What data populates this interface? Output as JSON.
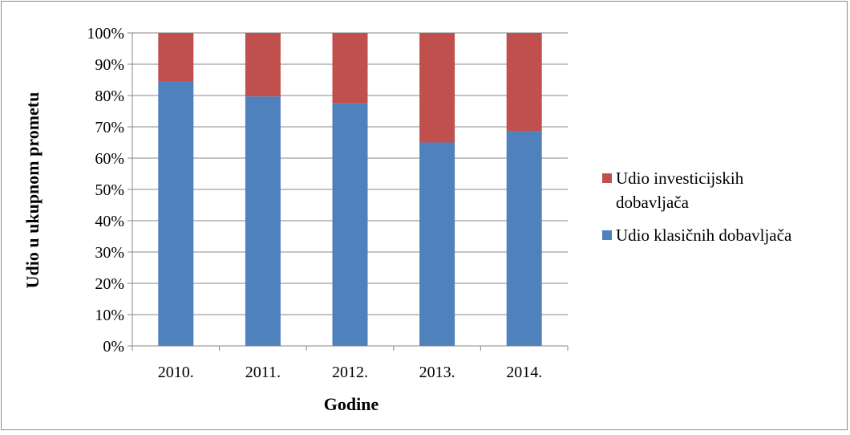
{
  "chart_data": {
    "type": "bar",
    "stacked": true,
    "percent": true,
    "categories": [
      "2010.",
      "2011.",
      "2012.",
      "2013.",
      "2014."
    ],
    "series": [
      {
        "name": "Udio klasičnih dobavljača",
        "values": [
          84.5,
          79.7,
          77.5,
          65.0,
          68.7
        ],
        "color": "#4f81bd"
      },
      {
        "name": "Udio investicijskih dobavljača",
        "values": [
          15.5,
          20.3,
          22.5,
          35.0,
          31.3
        ],
        "color": "#c0504d"
      }
    ],
    "ylim": [
      0,
      100
    ],
    "yticks": [
      "0%",
      "10%",
      "20%",
      "30%",
      "40%",
      "50%",
      "60%",
      "70%",
      "80%",
      "90%",
      "100%"
    ],
    "xlabel": "Godine",
    "ylabel": "Udio u ukupnom prometu",
    "grid": true,
    "legend_position": "right",
    "legend": [
      {
        "lines": [
          "Udio investicijskih",
          "dobavljača"
        ],
        "color": "#c0504d"
      },
      {
        "lines": [
          "Udio klasičnih dobavljača"
        ],
        "color": "#4f81bd"
      }
    ]
  }
}
